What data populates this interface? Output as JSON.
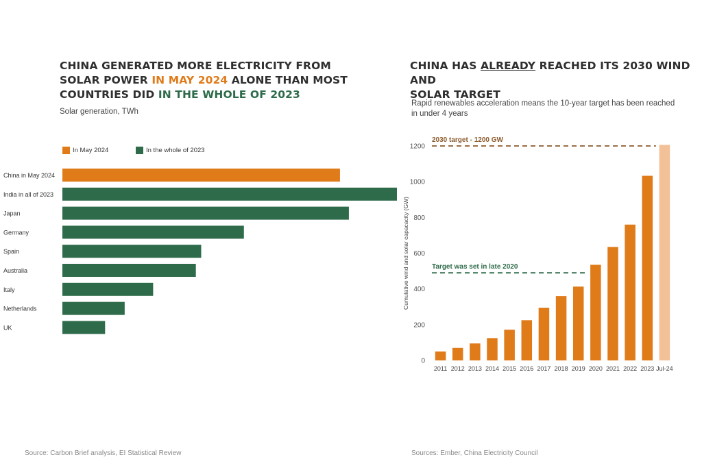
{
  "left": {
    "title": {
      "l1a": "CHINA GENERATED MORE ELECTRICITY FROM",
      "l2a": "SOLAR POWER ",
      "l2b": "IN MAY 2024",
      "l2c": " ALONE THAN MOST",
      "l3a": "COUNTRIES DID ",
      "l3b": "IN THE WHOLE OF 2023"
    },
    "subtitle": "Solar generation, TWh",
    "source": "Source: Carbon Brief analysis, EI Statistical Review"
  },
  "right": {
    "title": {
      "l1a": "CHINA HAS ",
      "l1b": "ALREADY",
      "l1c": " REACHED ITS 2030 WIND AND",
      "l2": "SOLAR TARGET"
    },
    "subtitle": "Rapid renewables acceleration means the 10-year target has been reached in under 4 years",
    "source": "Sources: Ember, China Electricity Council"
  },
  "colors": {
    "orange": "#E07B1A",
    "green": "#2E6B4A",
    "light_orange": "#F2C197",
    "target_brown": "#8B5A2B"
  },
  "chart_data": [
    {
      "type": "bar",
      "orientation": "horizontal",
      "categories": [
        "China in May 2024",
        "India in all of 2023",
        "Japan",
        "Germany",
        "Spain",
        "Australia",
        "Italy",
        "Netherlands",
        "UK"
      ],
      "values": [
        78,
        94,
        80.5,
        51,
        39,
        37.5,
        25.5,
        17.5,
        12
      ],
      "legend": [
        {
          "label": "In May 2024",
          "color": "#E07B1A"
        },
        {
          "label": "In the whole of 2023",
          "color": "#2E6B4A"
        }
      ],
      "legend_position": "top-left",
      "bar_series": [
        "In May 2024",
        "In the whole of 2023",
        "In the whole of 2023",
        "In the whole of 2023",
        "In the whole of 2023",
        "In the whole of 2023",
        "In the whole of 2023",
        "In the whole of 2023",
        "In the whole of 2023"
      ],
      "xlim": [
        0,
        94
      ],
      "grid": false
    },
    {
      "type": "bar",
      "categories": [
        "2011",
        "2012",
        "2013",
        "2014",
        "2015",
        "2016",
        "2017",
        "2018",
        "2019",
        "2020",
        "2021",
        "2022",
        "2023",
        "Jul-24"
      ],
      "values": [
        50,
        70,
        95,
        125,
        172,
        225,
        295,
        360,
        413,
        535,
        635,
        760,
        1033,
        1206
      ],
      "highlight_last": true,
      "ylabel": "Cumulative wind and solar capacacity (GW)",
      "ylim": [
        0,
        1200
      ],
      "yticks": [
        0,
        200,
        400,
        600,
        800,
        1000,
        1200
      ],
      "grid": false,
      "annotations": [
        {
          "label": "2030 target - 1200 GW",
          "y": 1200,
          "color": "#8B5A2B"
        },
        {
          "label": "Target was set in late 2020",
          "y": 490,
          "color": "#2E6B4A"
        }
      ]
    }
  ]
}
